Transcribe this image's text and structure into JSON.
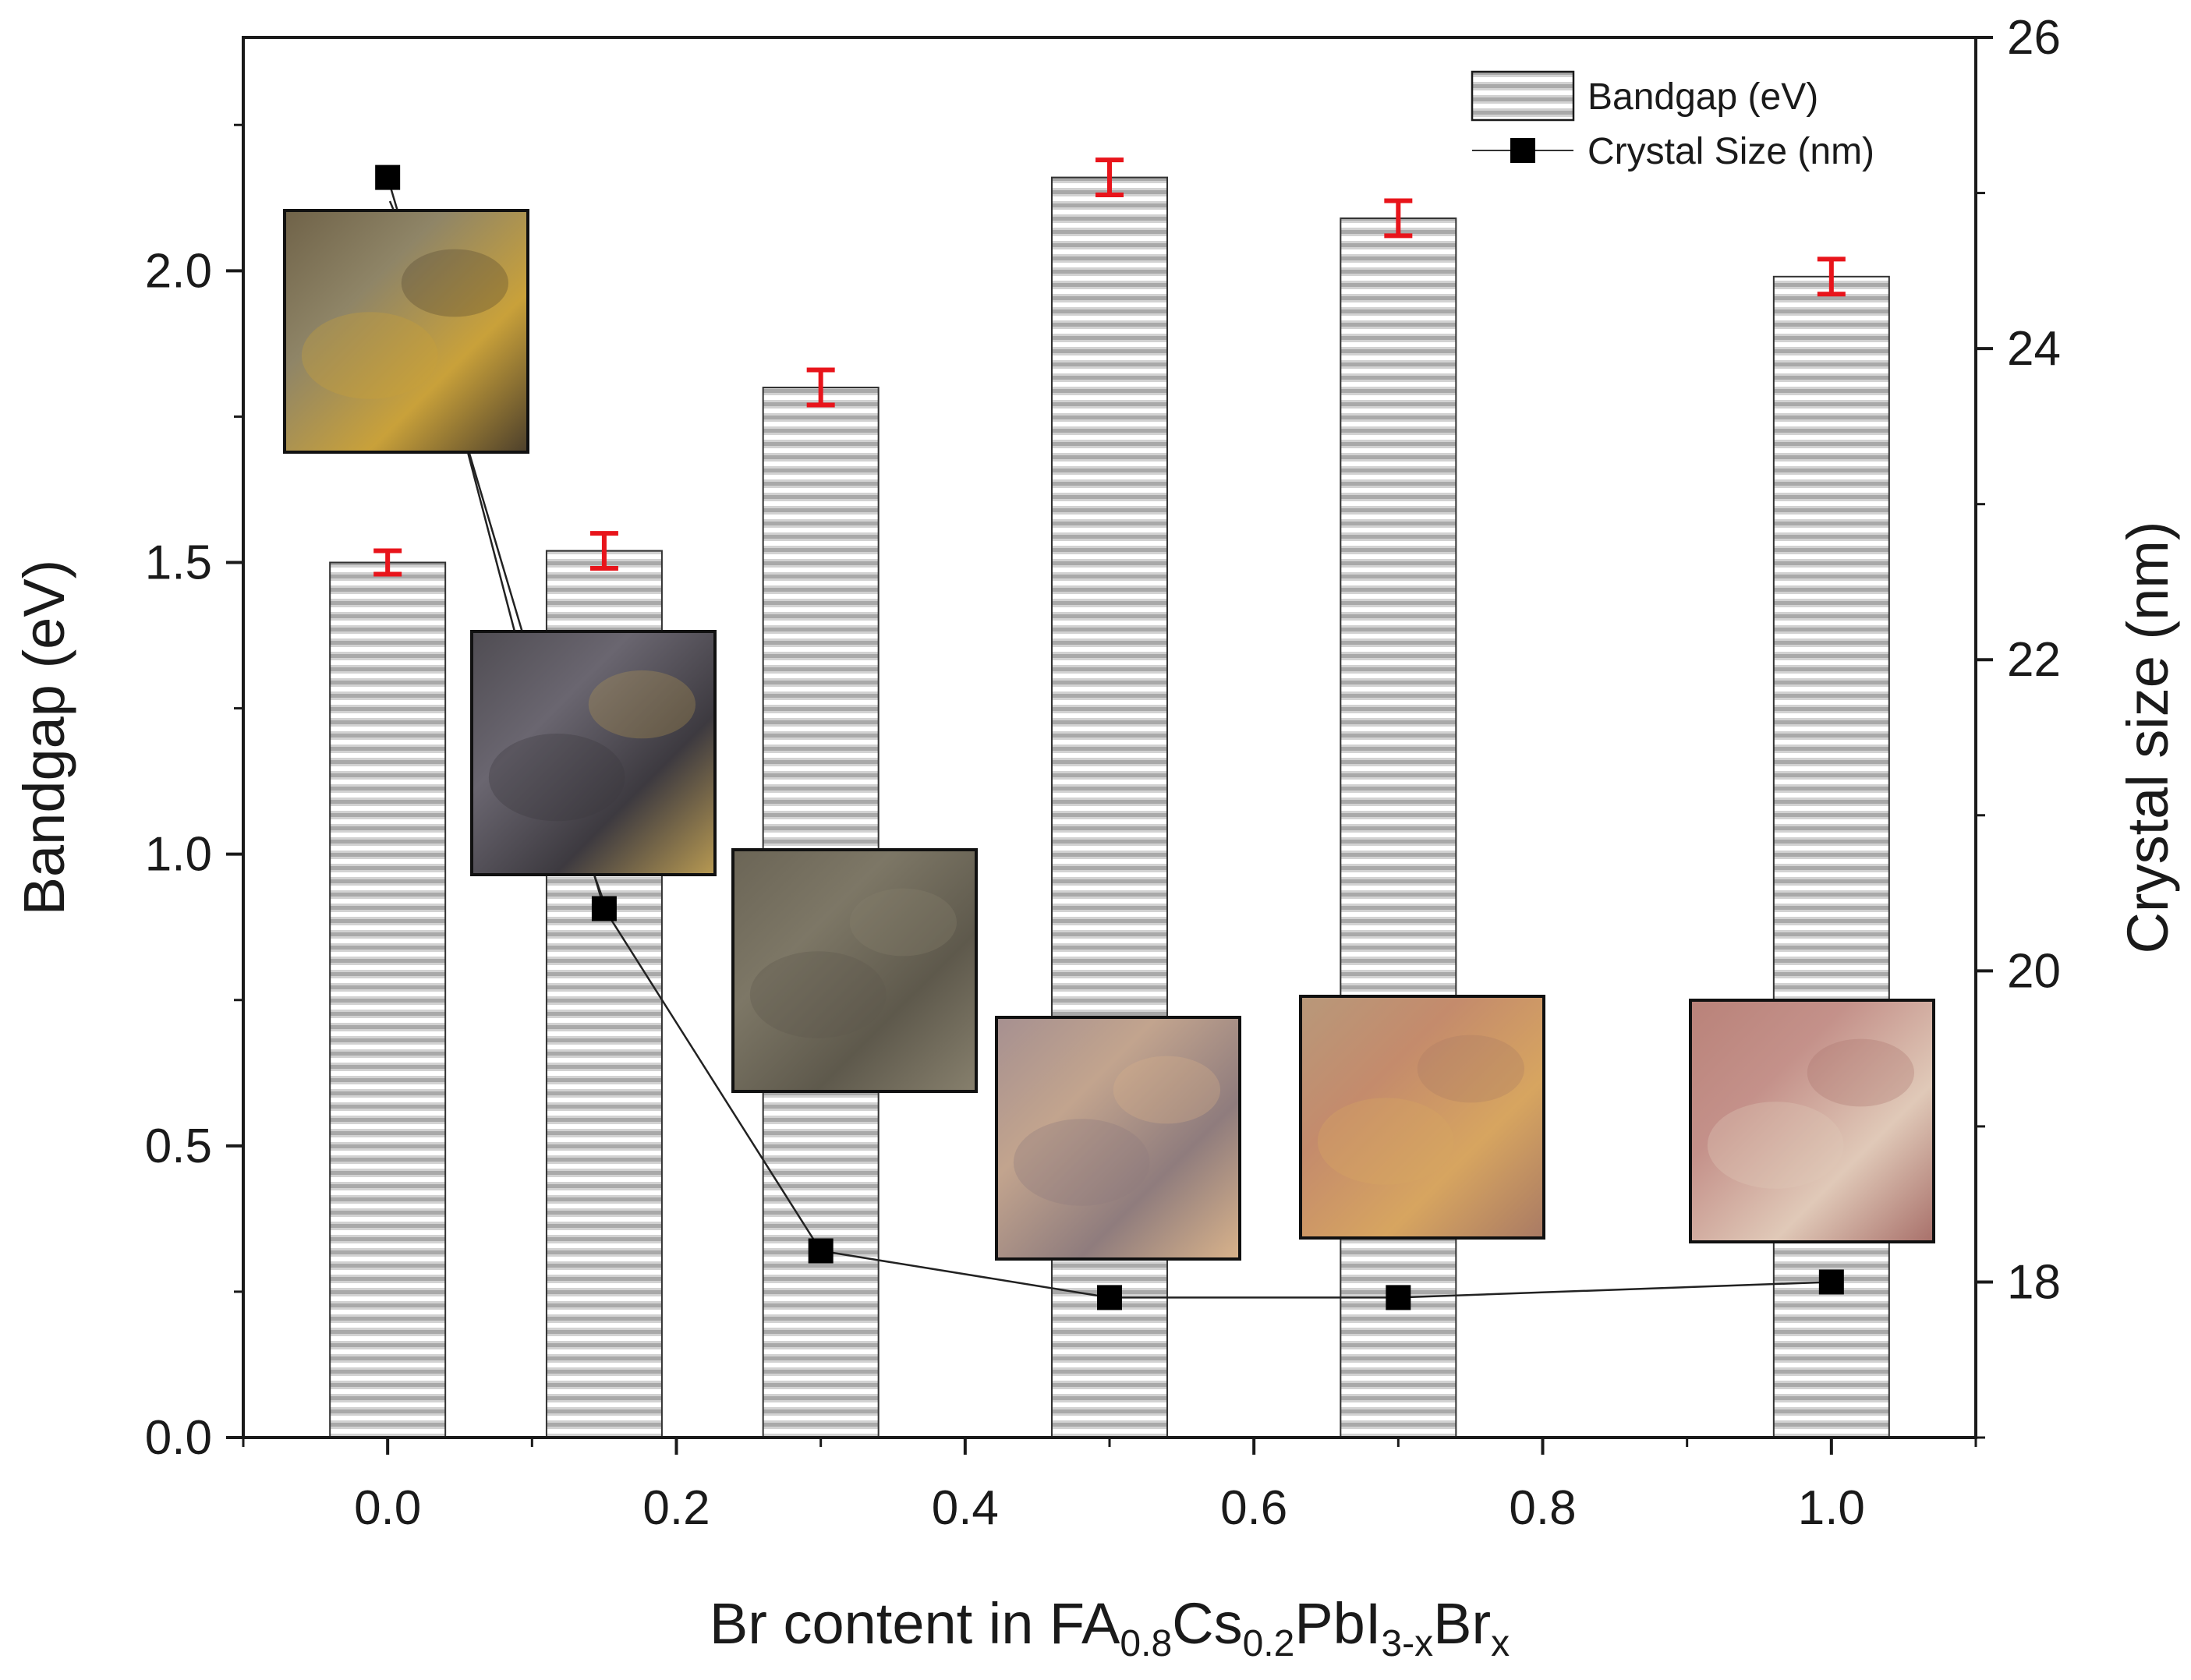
{
  "chart_data": {
    "type": "bar",
    "xlabel": {
      "parts": [
        {
          "text": "Br content in FA",
          "kind": "normal"
        },
        {
          "text": "0.8",
          "kind": "sub"
        },
        {
          "text": "Cs",
          "kind": "normal"
        },
        {
          "text": "0.2",
          "kind": "sub"
        },
        {
          "text": "PbI",
          "kind": "normal"
        },
        {
          "text": "3-x",
          "kind": "sub"
        },
        {
          "text": "Br",
          "kind": "normal"
        },
        {
          "text": "x",
          "kind": "sub"
        }
      ]
    },
    "ylabel_left": "Bandgap (eV)",
    "ylabel_right": "Crystal size (nm)",
    "xlim": [
      -0.1,
      1.1
    ],
    "ylim_left": [
      0,
      2.4
    ],
    "ylim_right": [
      17,
      26
    ],
    "x_ticks": [
      "0.0",
      "0.2",
      "0.4",
      "0.6",
      "0.8",
      "1.0"
    ],
    "y_left_ticks": [
      "0.0",
      "0.5",
      "1.0",
      "1.5",
      "2.0"
    ],
    "y_right_ticks": [
      "18",
      "20",
      "22",
      "24",
      "26"
    ],
    "legend_position": "top-right",
    "series": [
      {
        "name": "Bandgap (eV)",
        "kind": "bar",
        "axis": "left",
        "x": [
          0.0,
          0.15,
          0.3,
          0.5,
          0.7,
          1.0
        ],
        "values": [
          1.5,
          1.52,
          1.8,
          2.16,
          2.09,
          1.99
        ],
        "errors": [
          0.02,
          0.03,
          0.03,
          0.03,
          0.03,
          0.03
        ],
        "error_color": "#e8141b"
      },
      {
        "name": "Crystal Size (nm)",
        "kind": "line",
        "axis": "right",
        "x": [
          0.0,
          0.15,
          0.3,
          0.5,
          0.7,
          1.0
        ],
        "values": [
          25.1,
          20.4,
          18.2,
          17.9,
          17.9,
          18.0
        ]
      }
    ],
    "insets": [
      {
        "name": "x0-sample-photo",
        "palette": [
          "#6f6248",
          "#8f8567",
          "#c9a13a",
          "#4c3f2b"
        ]
      },
      {
        "name": "x015-sample-photo",
        "palette": [
          "#4f4c52",
          "#6a6670",
          "#3d3a40",
          "#b89a52"
        ]
      },
      {
        "name": "x03-sample-photo",
        "palette": [
          "#6b6556",
          "#7d7766",
          "#5e594c",
          "#87806d"
        ]
      },
      {
        "name": "x05-sample-photo",
        "palette": [
          "#a69090",
          "#c2a48e",
          "#8f7c7d",
          "#d9b38b"
        ]
      },
      {
        "name": "x07-sample-photo",
        "palette": [
          "#b8987a",
          "#c48b6c",
          "#d7a560",
          "#a97a64"
        ]
      },
      {
        "name": "x10-sample-photo",
        "palette": [
          "#b98279",
          "#c4918a",
          "#e0c9b8",
          "#a8706a"
        ]
      }
    ]
  }
}
